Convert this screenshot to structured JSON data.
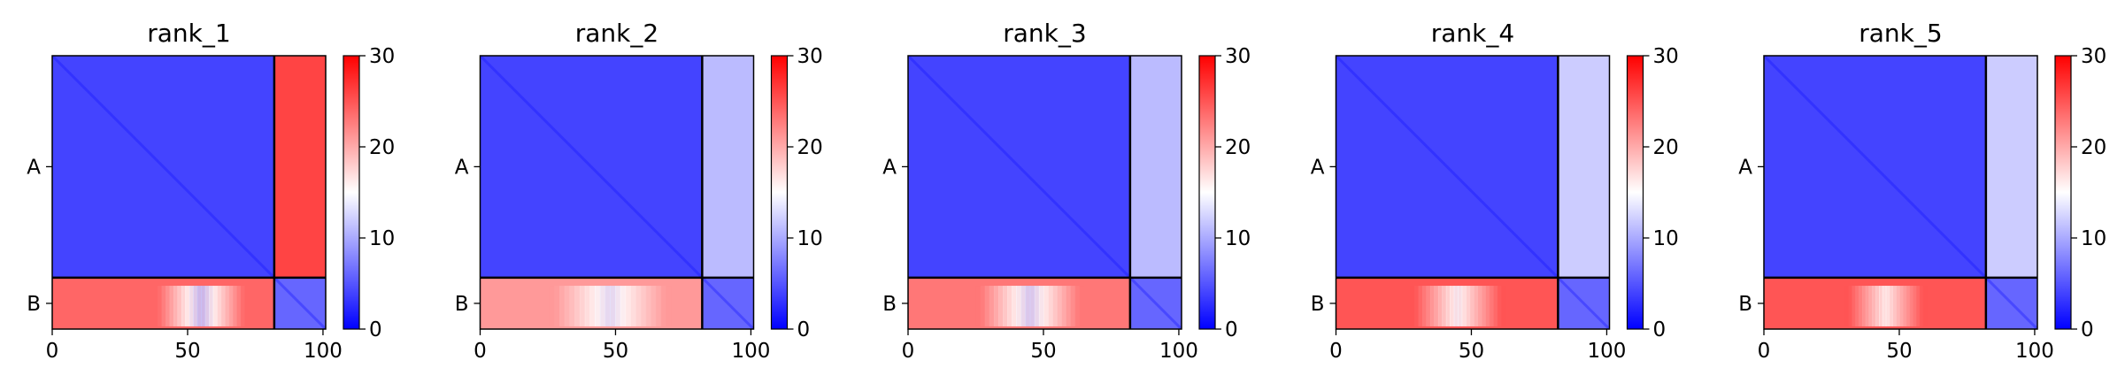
{
  "chart_data": [
    {
      "type": "heatmap",
      "title": "rank_1",
      "chains": [
        {
          "label": "A",
          "start": 0,
          "end": 82
        },
        {
          "label": "B",
          "start": 82,
          "end": 101
        }
      ],
      "xlim": [
        0,
        101
      ],
      "xticks": [
        0,
        50,
        100
      ],
      "colorbar": {
        "min": 0,
        "max": 30,
        "ticks": [
          0,
          10,
          20,
          30
        ],
        "colors": [
          "#0000ff",
          "#ffffff",
          "#ff0000"
        ]
      },
      "blocks": {
        "AA": 4,
        "AB": 26,
        "BA": 24,
        "BB": 6
      },
      "ba_dip": {
        "center": 55,
        "width": 35,
        "value": 11
      },
      "diag_value": 1
    },
    {
      "type": "heatmap",
      "title": "rank_2",
      "chains": [
        {
          "label": "A",
          "start": 0,
          "end": 82
        },
        {
          "label": "B",
          "start": 82,
          "end": 101
        }
      ],
      "xlim": [
        0,
        101
      ],
      "xticks": [
        0,
        50,
        100
      ],
      "colorbar": {
        "min": 0,
        "max": 30,
        "ticks": [
          0,
          10,
          20,
          30
        ],
        "colors": [
          "#0000ff",
          "#ffffff",
          "#ff0000"
        ]
      },
      "blocks": {
        "AA": 4,
        "AB": 11,
        "BA": 21,
        "BB": 6
      },
      "ba_dip": {
        "center": 48,
        "width": 45,
        "value": 13
      },
      "diag_value": 1
    },
    {
      "type": "heatmap",
      "title": "rank_3",
      "chains": [
        {
          "label": "A",
          "start": 0,
          "end": 82
        },
        {
          "label": "B",
          "start": 82,
          "end": 101
        }
      ],
      "xlim": [
        0,
        101
      ],
      "xticks": [
        0,
        50,
        100
      ],
      "colorbar": {
        "min": 0,
        "max": 30,
        "ticks": [
          0,
          10,
          20,
          30
        ],
        "colors": [
          "#0000ff",
          "#ffffff",
          "#ff0000"
        ]
      },
      "blocks": {
        "AA": 4,
        "AB": 11,
        "BA": 23,
        "BB": 6
      },
      "ba_dip": {
        "center": 45,
        "width": 40,
        "value": 12
      },
      "diag_value": 1
    },
    {
      "type": "heatmap",
      "title": "rank_4",
      "chains": [
        {
          "label": "A",
          "start": 0,
          "end": 82
        },
        {
          "label": "B",
          "start": 82,
          "end": 101
        }
      ],
      "xlim": [
        0,
        101
      ],
      "xticks": [
        0,
        50,
        100
      ],
      "colorbar": {
        "min": 0,
        "max": 30,
        "ticks": [
          0,
          10,
          20,
          30
        ],
        "colors": [
          "#0000ff",
          "#ffffff",
          "#ff0000"
        ]
      },
      "blocks": {
        "AA": 4,
        "AB": 12,
        "BA": 25,
        "BB": 6
      },
      "ba_dip": {
        "center": 45,
        "width": 35,
        "value": 14
      },
      "diag_value": 1
    },
    {
      "type": "heatmap",
      "title": "rank_5",
      "chains": [
        {
          "label": "A",
          "start": 0,
          "end": 82
        },
        {
          "label": "B",
          "start": 82,
          "end": 101
        }
      ],
      "xlim": [
        0,
        101
      ],
      "xticks": [
        0,
        50,
        100
      ],
      "colorbar": {
        "min": 0,
        "max": 30,
        "ticks": [
          0,
          10,
          20,
          30
        ],
        "colors": [
          "#0000ff",
          "#ffffff",
          "#ff0000"
        ]
      },
      "blocks": {
        "AA": 4,
        "AB": 12,
        "BA": 25,
        "BB": 6
      },
      "ba_dip": {
        "center": 45,
        "width": 30,
        "value": 15
      },
      "diag_value": 1
    }
  ]
}
